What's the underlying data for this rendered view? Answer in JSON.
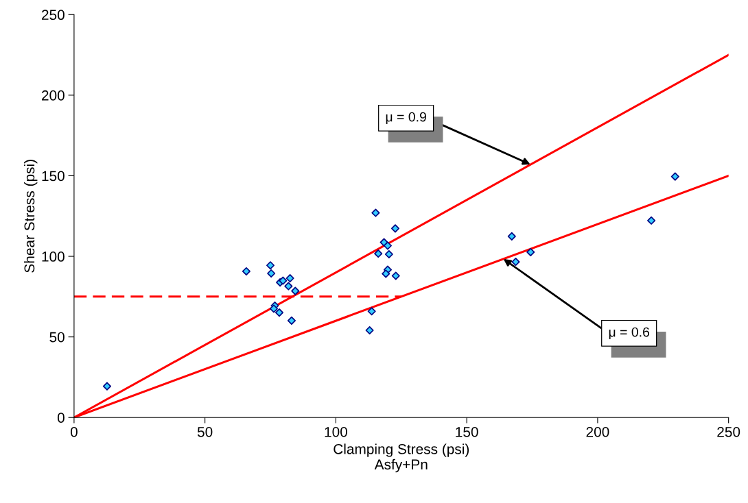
{
  "chart_data": {
    "type": "scatter",
    "xlabel": "Clamping Stress (psi)\nAsfy+Pn",
    "ylabel": "Shear Stress (psi)",
    "xlim": [
      0,
      250
    ],
    "xticks": [
      0,
      50,
      100,
      150,
      200,
      250
    ],
    "ylim": [
      0,
      250
    ],
    "yticks": [
      0,
      50,
      100,
      150,
      200,
      250
    ],
    "grid": false,
    "legend": false,
    "series": [
      {
        "color": "#33ccff",
        "marker": "diamond",
        "x": [
          12.6,
          65.8,
          75.0,
          75.3,
          78.7,
          79.8,
          82.5,
          81.9,
          84.5,
          76.7,
          76.3,
          78.4,
          83.1,
          115.2,
          122.7,
          118.4,
          119.8,
          116.2,
          120.3,
          119.8,
          119.1,
          122.9,
          113.7,
          112.9,
          229.6,
          220.5,
          167.2,
          174.4,
          168.7
        ],
        "values": [
          19.4,
          90.7,
          94.4,
          89.4,
          83.8,
          84.9,
          86.4,
          81.5,
          78.5,
          69.4,
          67.5,
          65.1,
          60.1,
          127.0,
          117.3,
          108.7,
          106.6,
          101.7,
          101.3,
          91.7,
          89.2,
          87.9,
          65.9,
          54.1,
          149.5,
          122.2,
          112.4,
          102.6,
          96.6
        ]
      },
      {
        "type": "line",
        "color": "#ff0000",
        "marker": "none",
        "line_style": "solid",
        "x": [
          0,
          250
        ],
        "values": [
          0,
          225
        ]
      },
      {
        "type": "line",
        "color": "#ff0000",
        "marker": "none",
        "line_style": "solid",
        "x": [
          0,
          250
        ],
        "values": [
          0,
          150
        ]
      },
      {
        "type": "line",
        "color": "#ff0000",
        "marker": "none",
        "line_style": "dashed",
        "x": [
          0,
          125
        ],
        "values": [
          75,
          75
        ]
      }
    ],
    "annotations": [
      {
        "text": "μ = 0.9",
        "x": 174.3,
        "y": 157
      },
      {
        "text": "μ = 0.6",
        "x": 164,
        "y": 98.4
      }
    ]
  }
}
